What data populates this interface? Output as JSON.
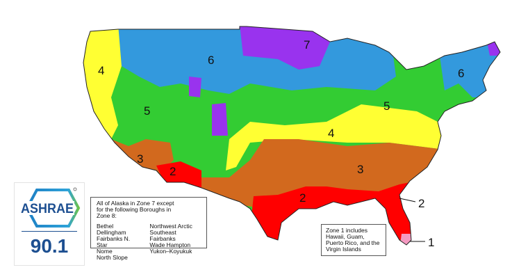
{
  "map": {
    "zones": [
      {
        "zone": "1",
        "color": "#f49ac1"
      },
      {
        "zone": "2",
        "color": "#ff0000"
      },
      {
        "zone": "3",
        "color": "#d2691e"
      },
      {
        "zone": "4",
        "color": "#ffff33"
      },
      {
        "zone": "5",
        "color": "#33cc33"
      },
      {
        "zone": "6",
        "color": "#3399dd"
      },
      {
        "zone": "7",
        "color": "#9933ee"
      }
    ],
    "labels": {
      "nw6": "6",
      "mn7": "7",
      "wc4": "4",
      "w5": "5",
      "ca3": "3",
      "az2": "2",
      "e5": "5",
      "m4": "4",
      "se3": "3",
      "gulf2": "2",
      "ne6": "6",
      "fl2": "2",
      "fl1": "1"
    }
  },
  "alaska_note": {
    "heading": "All of Alaska in Zone 7 except for the following Boroughs in Zone 8:",
    "col1": [
      "Bethel",
      "Dellingham",
      "Fairbanks N. Star",
      "Nome",
      "North Slope"
    ],
    "col2": [
      "Northwest Arctic",
      "Southeast Fairbanks",
      "Wade Hampton",
      "Yukon–Koyukuk"
    ]
  },
  "zone1_note": "Zone 1 includes Hawaii, Guam, Puerto Rico, and the Virgin Islands",
  "logo": {
    "brand": "ASHRAE",
    "standard": "90.1",
    "colors": {
      "blue": "#1d4f91",
      "green": "#6cc24a"
    }
  }
}
